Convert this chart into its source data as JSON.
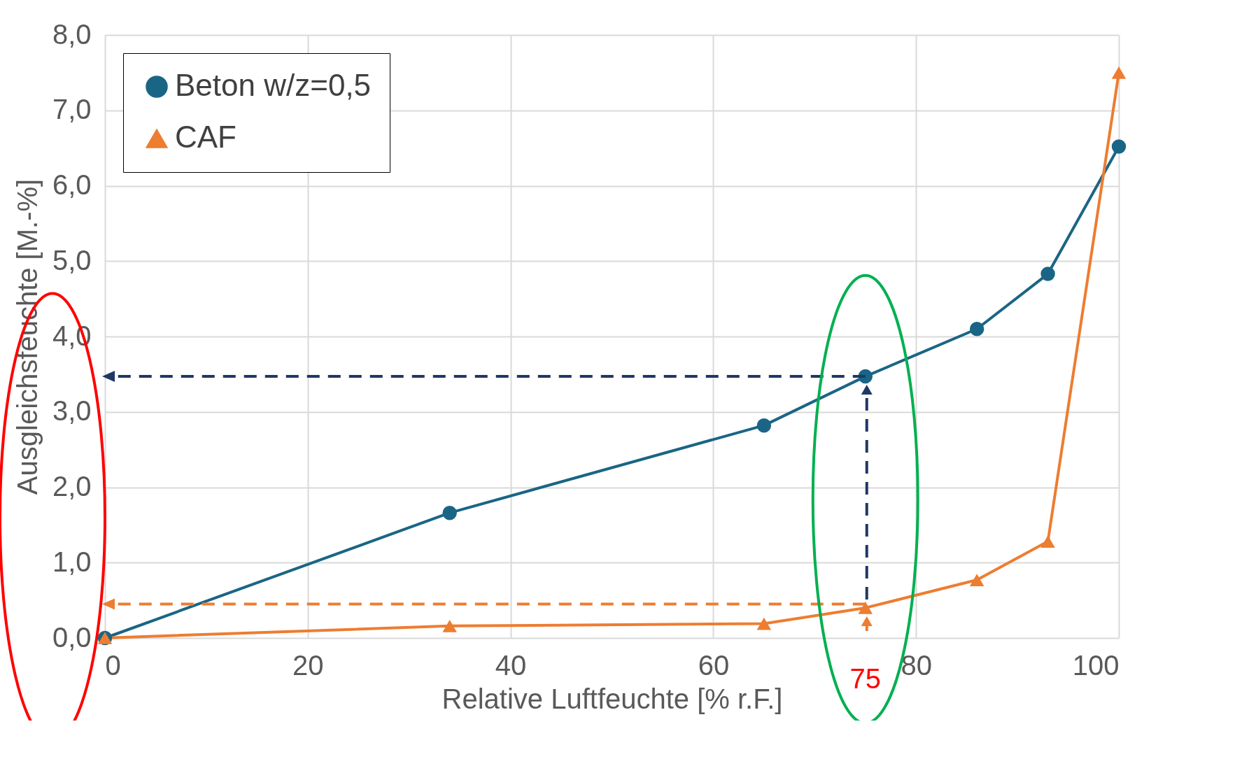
{
  "chart_data": {
    "type": "line",
    "xlabel": "Relative Luftfeuchte [% r.F.]",
    "ylabel": "Ausgleichsfeuchte [M.-%]",
    "xlim": [
      0,
      100
    ],
    "xticks": [
      0,
      20,
      40,
      60,
      80,
      100
    ],
    "ylim": [
      0,
      8
    ],
    "yticks": [
      {
        "value": 0,
        "label": "0,0"
      },
      {
        "value": 1,
        "label": "1,0"
      },
      {
        "value": 2,
        "label": "2,0"
      },
      {
        "value": 3,
        "label": "3,0"
      },
      {
        "value": 4,
        "label": "4,0"
      },
      {
        "value": 5,
        "label": "5,0"
      },
      {
        "value": 6,
        "label": "6,0"
      },
      {
        "value": 7,
        "label": "7,0"
      },
      {
        "value": 8,
        "label": "8,0"
      }
    ],
    "grid": true,
    "legend": "top left",
    "series": [
      {
        "name": "Beton w/z=0,5",
        "color": "#1a6585",
        "marker": "circle",
        "x": [
          0,
          34,
          65,
          75,
          86,
          93,
          100
        ],
        "values": [
          0,
          1.66,
          2.82,
          3.47,
          4.1,
          4.83,
          6.52
        ]
      },
      {
        "name": "CAF",
        "color": "#ed7d31",
        "marker": "triangle",
        "x": [
          0,
          34,
          65,
          75,
          86,
          93,
          100
        ],
        "values": [
          0,
          0.16,
          0.19,
          0.4,
          0.77,
          1.28,
          7.5
        ]
      },
      {
        "type": "line",
        "color": "#1f3864",
        "line_style": "dashed",
        "x": [
          75,
          0
        ],
        "values": [
          3.47,
          3.47
        ]
      },
      {
        "type": "line",
        "color": "#ed7d31",
        "line_style": "dashed",
        "x": [
          75,
          0
        ],
        "values": [
          0.45,
          0.45
        ]
      }
    ],
    "annotations": [
      "75"
    ]
  }
}
